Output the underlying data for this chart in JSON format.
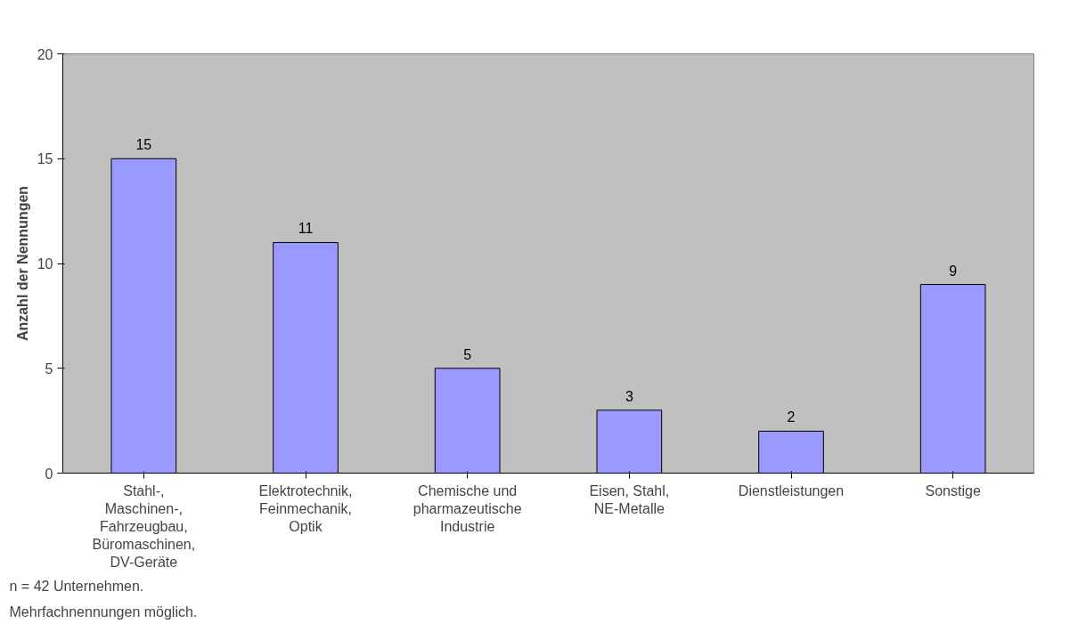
{
  "chart_data": {
    "type": "bar",
    "ylabel": "Anzahl der Nennungen",
    "categories": [
      "Stahl-, Maschinen-, Fahrzeugbau, Büromaschinen, DV-Geräte",
      "Elektrotechnik, Feinmechanik, Optik",
      "Chemische und pharmazeutische Industrie",
      "Eisen, Stahl, NE-Metalle",
      "Dienstleistungen",
      "Sonstige"
    ],
    "values": [
      15,
      11,
      5,
      3,
      2,
      9
    ],
    "color": "#9999ff",
    "ylim": [
      0,
      20
    ],
    "yticks": [
      0,
      5,
      10,
      15,
      20
    ],
    "grid": false,
    "data_labels": true,
    "annotations": [
      "n = 42 Unternehmen.",
      "Mehrfachnennungen möglich."
    ]
  }
}
